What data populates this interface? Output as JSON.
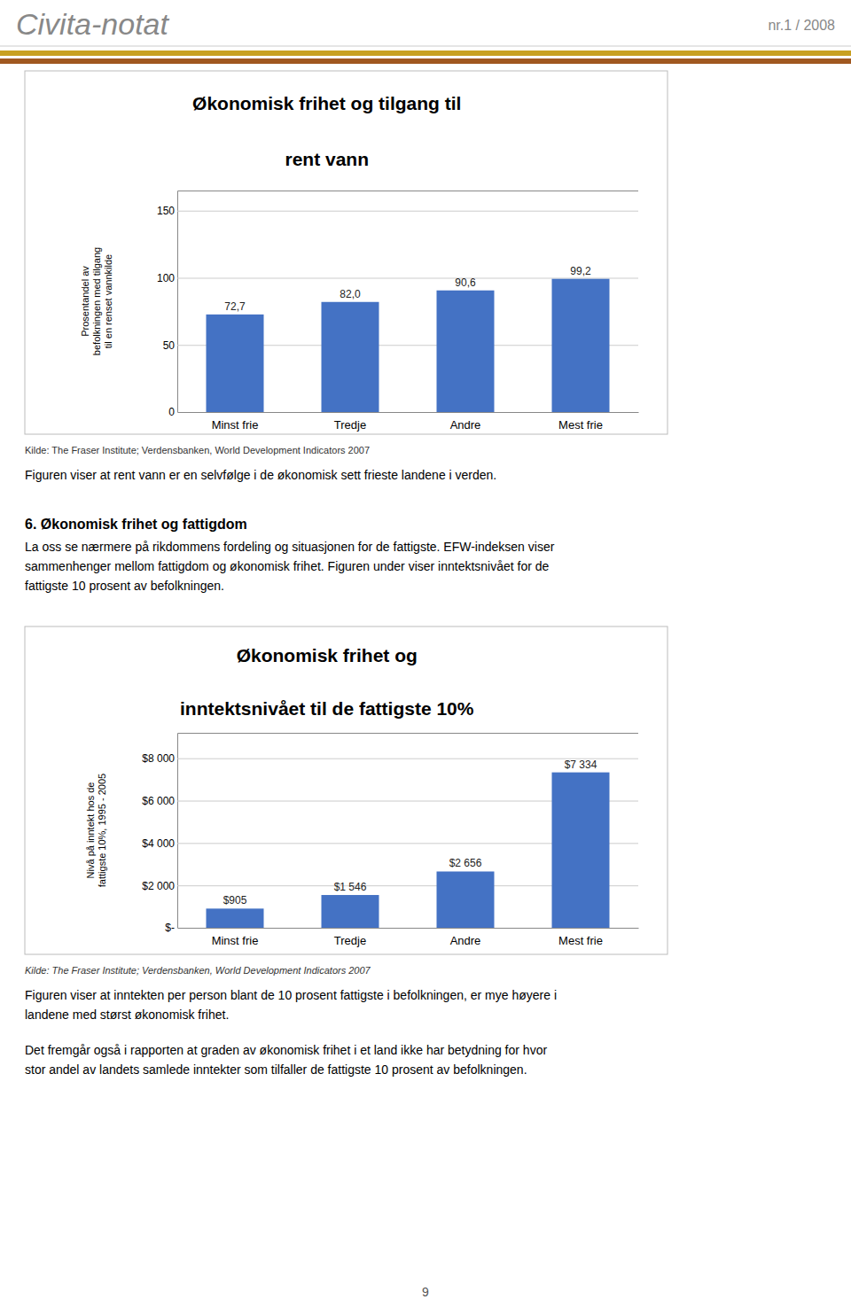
{
  "header": {
    "title": "Civita-notat",
    "number": "nr.1 / 2008"
  },
  "chart_data": [
    {
      "type": "bar",
      "title": [
        "Økonomisk frihet og tilgang til",
        "rent vann"
      ],
      "categories": [
        "Minst frie",
        "Tredje",
        "Andre",
        "Mest frie"
      ],
      "values": [
        72.7,
        82.0,
        90.6,
        99.2
      ],
      "value_labels": [
        "72,7",
        "82,0",
        "90,6",
        "99,2"
      ],
      "data_labels": true,
      "color": "#4472C4",
      "ylabel": [
        "Prosentandel av",
        "befolkningen med tilgang",
        "til en renset vannkilde"
      ],
      "ylim": [
        0,
        165
      ],
      "yticks": [
        0,
        50,
        100,
        150
      ],
      "grid": true,
      "source": "Kilde: The Fraser Institute; Verdensbanken, World Development Indicators 2007",
      "notes": [
        [
          "Figuren viser at rent vann er en selvfølge i de økonomisk sett frieste landene i verden."
        ]
      ]
    },
    {
      "type": "bar",
      "title": [
        "Økonomisk frihet og",
        "inntektsnivået til de fattigste 10%"
      ],
      "categories": [
        "Minst frie",
        "Tredje",
        "Andre",
        "Mest frie"
      ],
      "values": [
        905,
        1546,
        2656,
        7334
      ],
      "value_labels": [
        "$905",
        "$1 546",
        "$2 656",
        "$7 334"
      ],
      "data_labels": true,
      "color": "#4472C4",
      "ylabel": [
        "Nivå på inntekt hos de",
        "fattigste 10%, 1995 - 2005"
      ],
      "ylim": [
        0,
        9200
      ],
      "yticks": [
        {
          "value": 0,
          "label": "$-"
        },
        {
          "value": 2000,
          "label": "$2 000"
        },
        {
          "value": 4000,
          "label": "$4 000"
        },
        {
          "value": 6000,
          "label": "$6 000"
        },
        {
          "value": 8000,
          "label": "$8 000"
        }
      ],
      "grid": true,
      "source": "Kilde: The Fraser Institute; Verdensbanken, World Development Indicators 2007",
      "notes": [
        [
          "Figuren viser at inntekten per person blant de 10 prosent fattigste i befolkningen, er mye høyere i",
          "landene med størst økonomisk frihet."
        ],
        [
          "Det fremgår også i rapporten at graden av økonomisk frihet i et land ikke har betydning for hvor",
          "stor andel av landets samlede inntekter som tilfaller de fattigste 10 prosent av befolkningen."
        ]
      ]
    }
  ],
  "section": {
    "title": "6. Økonomisk frihet og fattigdom",
    "lines": [
      "La oss se nærmere på rikdommens fordeling og situasjonen for de fattigste. EFW-indeksen viser",
      "sammenhenger mellom fattigdom og økonomisk frihet. Figuren under viser inntektsnivået for de",
      "fattigste 10 prosent av befolkningen."
    ]
  },
  "page_number": "9"
}
